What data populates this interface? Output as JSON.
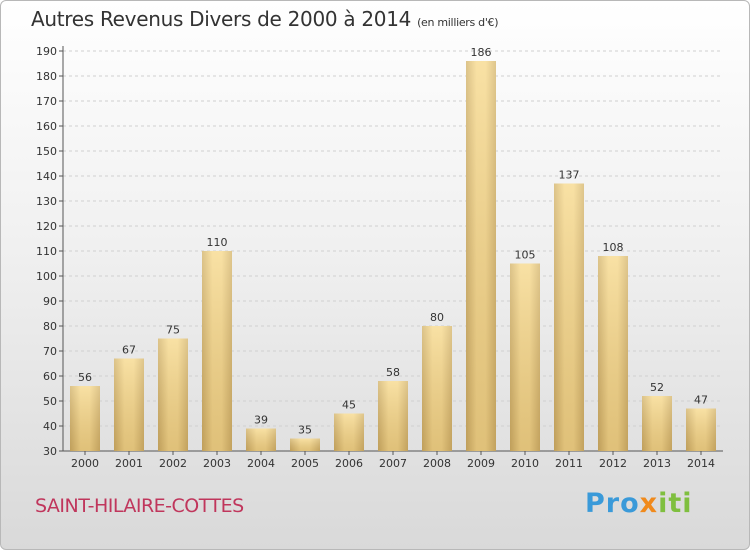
{
  "title": "Autres Revenus Divers de 2000 à 2014",
  "subtitle": "(en milliers d'€)",
  "commune": "SAINT-HILAIRE-COTTES",
  "brand": {
    "text": "Proxiti",
    "colors": [
      "#3a9ad9",
      "#f08a1c",
      "#7fbf3f"
    ]
  },
  "chart_data": {
    "type": "bar",
    "categories": [
      "2000",
      "2001",
      "2002",
      "2003",
      "2004",
      "2005",
      "2006",
      "2007",
      "2008",
      "2009",
      "2010",
      "2011",
      "2012",
      "2013",
      "2014"
    ],
    "values": [
      56,
      67,
      75,
      110,
      39,
      35,
      45,
      58,
      80,
      186,
      105,
      137,
      108,
      52,
      47
    ],
    "title": "Autres Revenus Divers de 2000 à 2014",
    "subtitle": "(en milliers d'€)",
    "ylim": [
      30,
      190
    ],
    "yticks": [
      30,
      40,
      50,
      60,
      70,
      80,
      90,
      100,
      110,
      120,
      130,
      140,
      150,
      160,
      170,
      180,
      190
    ],
    "grid": true,
    "bar_color": "#ecc97a",
    "data_labels": true
  }
}
